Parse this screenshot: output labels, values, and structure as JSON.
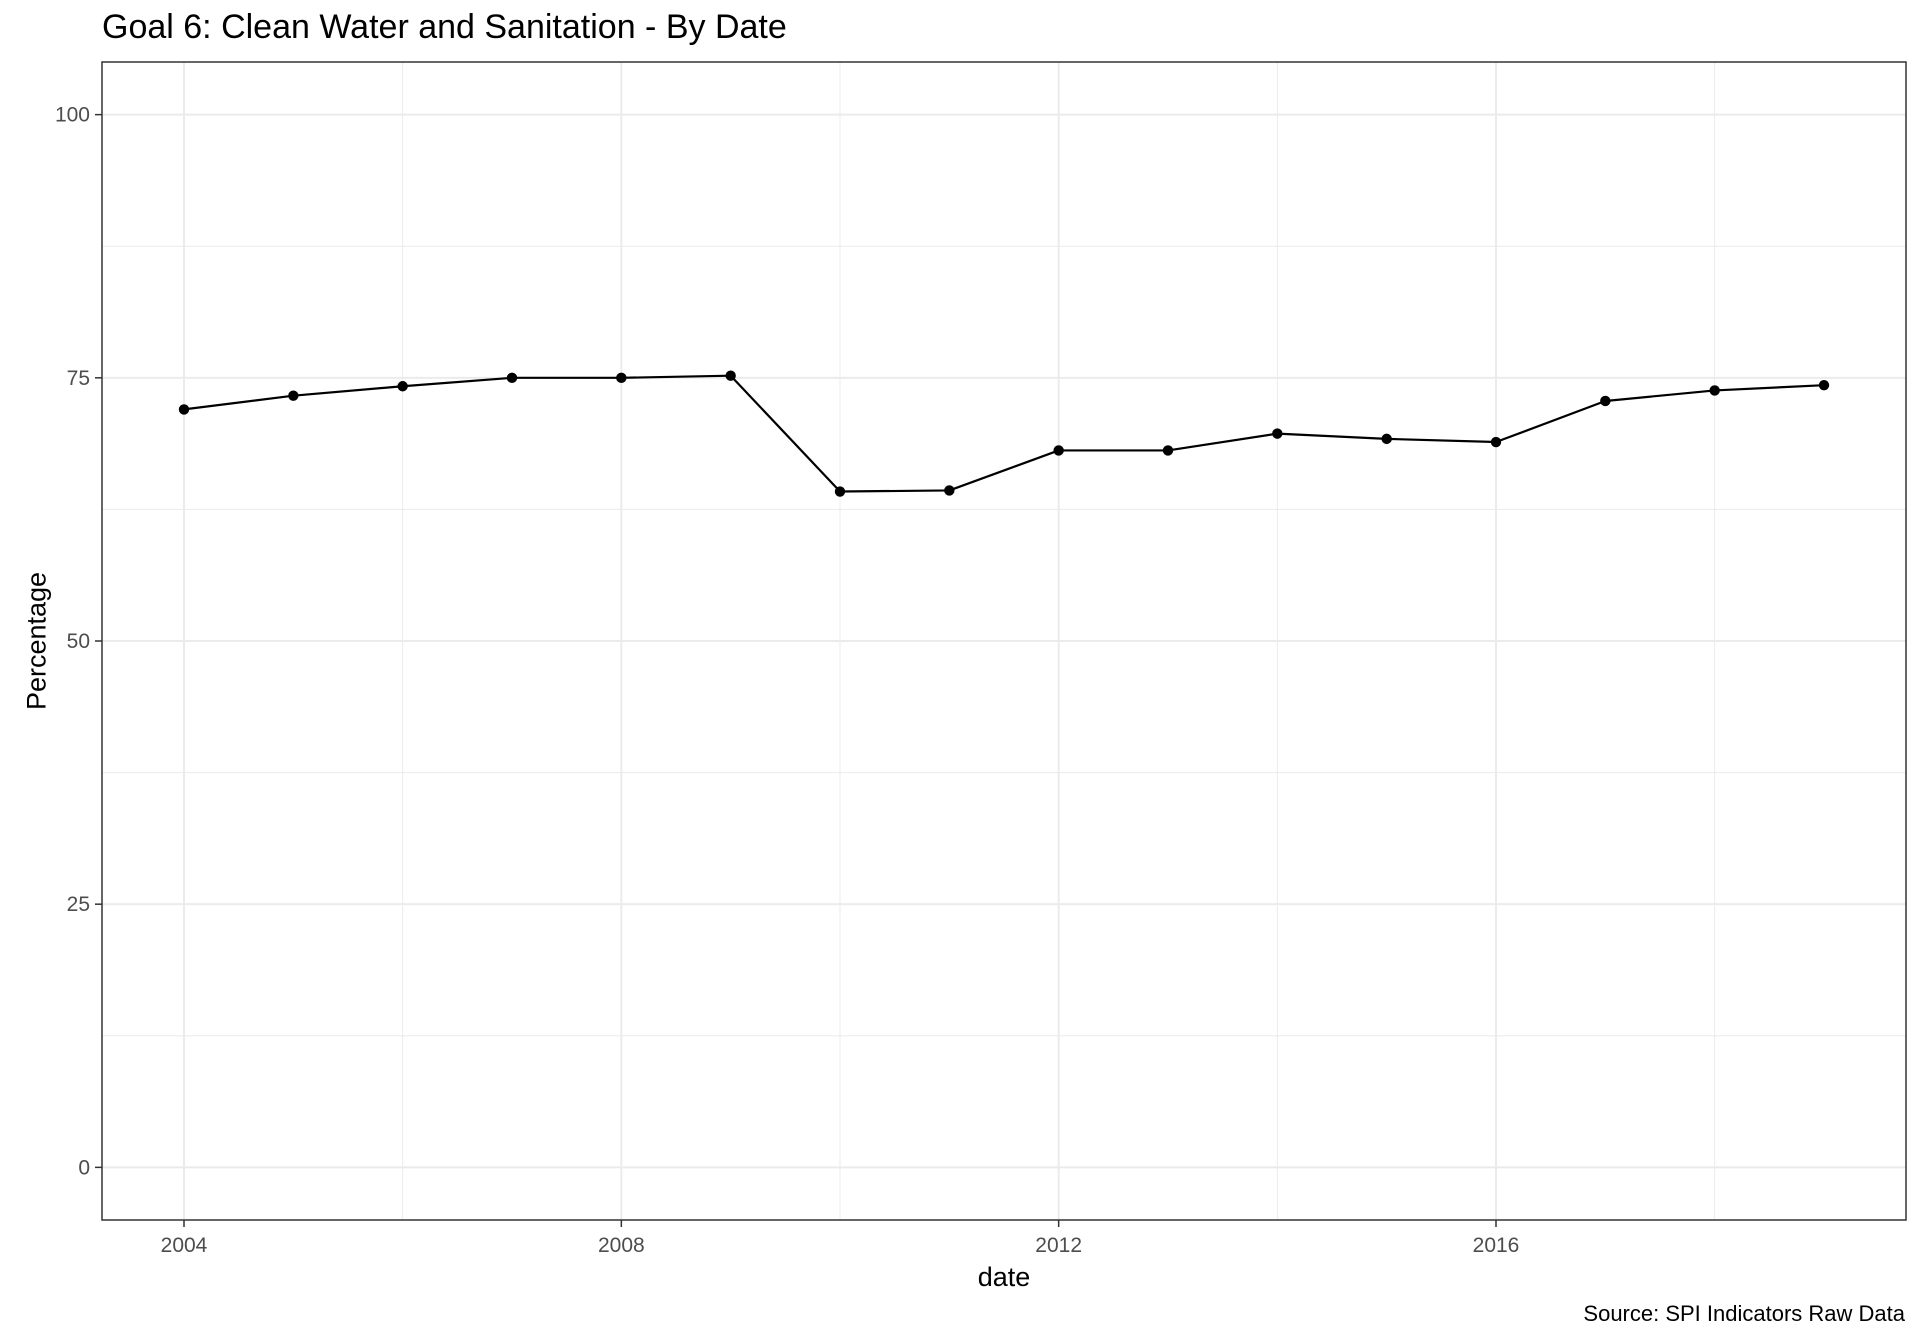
{
  "chart_data": {
    "type": "line",
    "title": "Goal 6: Clean Water and Sanitation - By Date",
    "xlabel": "date",
    "ylabel": "Percentage",
    "caption": "Source: SPI Indicators Raw Data",
    "x": [
      2004,
      2005,
      2006,
      2007,
      2008,
      2009,
      2010,
      2011,
      2012,
      2013,
      2014,
      2015,
      2016,
      2017,
      2018,
      2019
    ],
    "series": [
      {
        "values": [
          72.0,
          73.3,
          74.2,
          75.0,
          75.0,
          75.2,
          64.2,
          64.3,
          68.1,
          68.1,
          69.7,
          69.2,
          68.9,
          72.8,
          73.8,
          74.3
        ]
      }
    ],
    "xlim": [
      2003.25,
      2019.75
    ],
    "ylim": [
      -5,
      105
    ],
    "x_ticks": [
      "2004",
      "2008",
      "2012",
      "2016"
    ],
    "y_ticks": [
      "0",
      "25",
      "50",
      "75",
      "100"
    ],
    "grid": true,
    "legend": "none",
    "line_color": "#000000",
    "point_color": "#000000",
    "grid_color": "#ebebeb"
  }
}
